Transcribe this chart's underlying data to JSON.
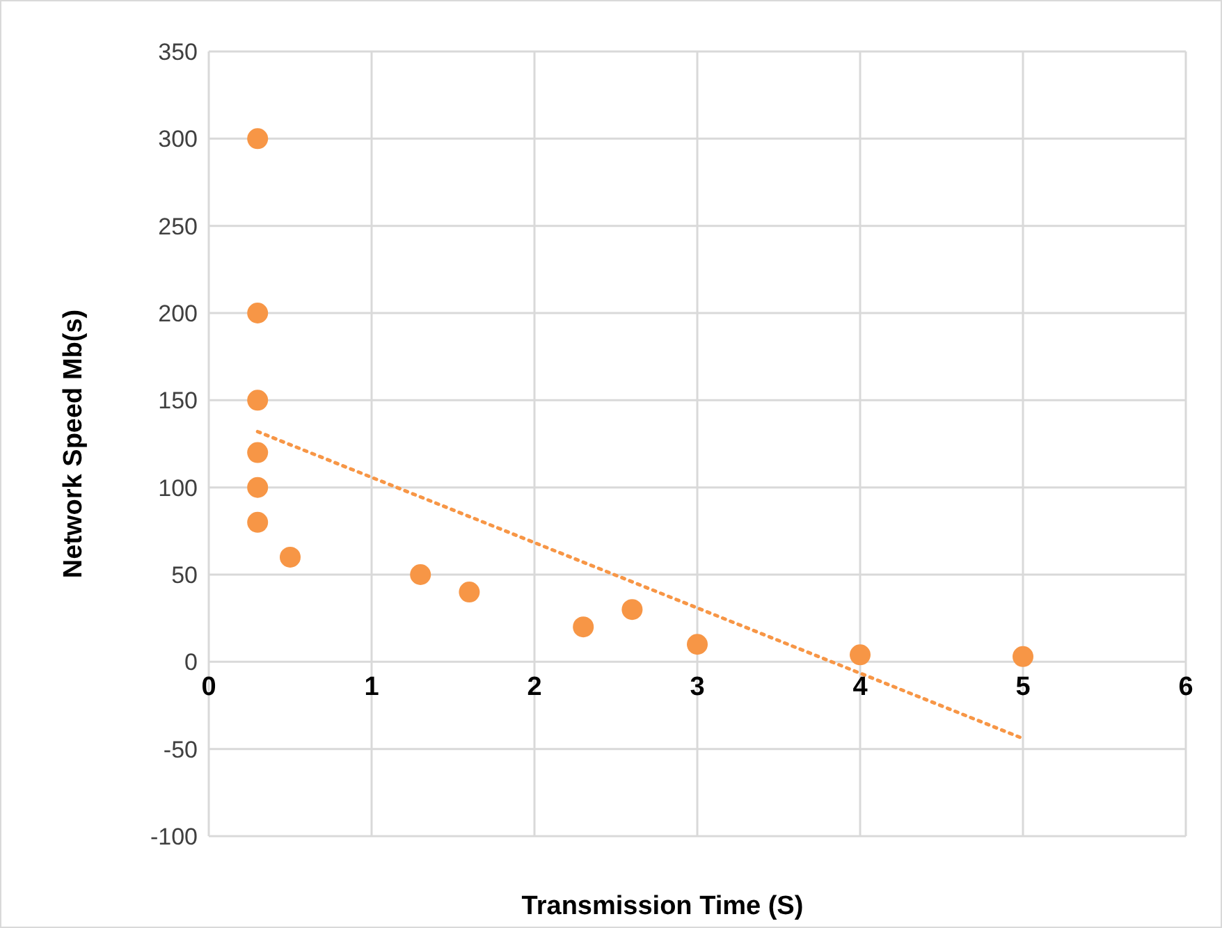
{
  "chart_data": {
    "type": "scatter",
    "xlabel": "Transmission Time (S)",
    "ylabel": "Network Speed Mb(s)",
    "xlim": [
      0,
      6
    ],
    "xticks": [
      0,
      1,
      2,
      3,
      4,
      5,
      6
    ],
    "ylim": [
      -100,
      350
    ],
    "yticks": [
      -100,
      -50,
      0,
      50,
      100,
      150,
      200,
      250,
      300,
      350
    ],
    "grid": true,
    "series": [
      {
        "marker": "circle",
        "color": "#f79646",
        "x": [
          0.3,
          0.3,
          0.3,
          0.3,
          0.3,
          0.3,
          0.5,
          1.3,
          1.6,
          2.3,
          2.6,
          3,
          4,
          5
        ],
        "values": [
          300,
          200,
          150,
          120,
          100,
          80,
          60,
          50,
          40,
          20,
          30,
          10,
          4,
          3
        ]
      },
      {
        "type": "line",
        "marker": "none",
        "line_style": "dotted",
        "color": "#f79646",
        "x": [
          0.3,
          5
        ],
        "values": [
          132,
          -44
        ]
      }
    ]
  }
}
